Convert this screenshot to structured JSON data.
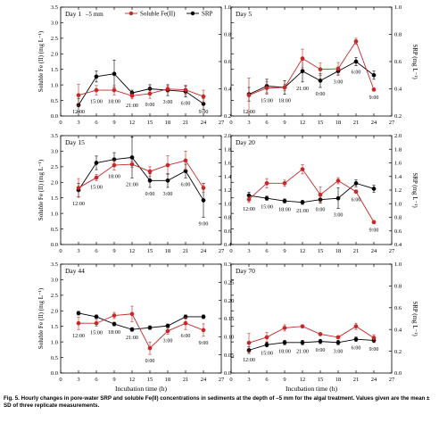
{
  "caption": "Fig. 5. Hourly changes in pore-water SRP and soluble Fe(II) concentrations in sediments at the depth of –5 mm for the algal treatment. Values given are the mean ± SD of three replicate measurements.",
  "legend": {
    "fe": "Soluble Fe(II)",
    "srp": "SRP"
  },
  "depth_label": "–5 mm",
  "axes": {
    "xlabel": "Incubation time (h)",
    "ylabel_left": "Soluble Fe (II) (mg L⁻¹)",
    "ylabel_right": "SRP (mg L⁻¹)",
    "x_ticks": [
      "0",
      "3",
      "6",
      "9",
      "12",
      "15",
      "18",
      "21",
      "24",
      "27"
    ]
  },
  "colors": {
    "fe": "#c62828",
    "srp": "#000000"
  },
  "chart_data": [
    {
      "type": "line",
      "title": "Day 1",
      "x": [
        3,
        6,
        9,
        12,
        15,
        18,
        21,
        24
      ],
      "time_labels": [
        "12:00",
        "15:00",
        "18:00",
        "21:00",
        "0:00",
        "3:00",
        "6:00",
        "9:00"
      ],
      "ylim_left": [
        0,
        3.5
      ],
      "yticks_left": [
        "0.0",
        "0.5",
        "1.0",
        "1.5",
        "2.0",
        "2.5",
        "3.0",
        "3.5"
      ],
      "ylim_right": [
        0.2,
        1.0
      ],
      "yticks_right": [
        "0.2",
        "0.4",
        "0.6",
        "0.8",
        "1.0"
      ],
      "series": [
        {
          "name": "Soluble Fe(II)",
          "axis": "left",
          "values": [
            0.67,
            0.83,
            0.83,
            0.65,
            0.72,
            0.87,
            0.84,
            0.63
          ],
          "errors": [
            0.35,
            0.15,
            0.15,
            0.1,
            0.15,
            0.1,
            0.15,
            0.2
          ]
        },
        {
          "name": "SRP",
          "axis": "right",
          "values": [
            0.28,
            0.49,
            0.51,
            0.37,
            0.4,
            0.39,
            0.38,
            0.29
          ],
          "errors": [
            0.05,
            0.04,
            0.1,
            0.02,
            0.03,
            0.04,
            0.04,
            0.04
          ]
        }
      ]
    },
    {
      "type": "line",
      "title": "Day 5",
      "x": [
        3,
        6,
        9,
        12,
        15,
        18,
        21,
        24
      ],
      "time_labels": [
        "12:00",
        "15:00",
        "18:00",
        "21:00",
        "0:00",
        "3:00",
        "6:00",
        "9:00"
      ],
      "ylim_left": [
        0,
        3.5
      ],
      "yticks_left": [],
      "ylim_right": [
        0.2,
        1.0
      ],
      "yticks_right": [
        "0.2",
        "0.4",
        "0.6",
        "0.8",
        "1.0"
      ],
      "series": [
        {
          "name": "Soluble Fe(II)",
          "axis": "left",
          "values": [
            0.67,
            0.9,
            0.92,
            1.85,
            1.5,
            1.52,
            2.4,
            0.85
          ],
          "errors": [
            0.55,
            0.2,
            0.1,
            0.3,
            0.2,
            0.2,
            0.1,
            0.05
          ]
        },
        {
          "name": "SRP",
          "axis": "right",
          "values": [
            0.36,
            0.42,
            0.41,
            0.53,
            0.46,
            0.53,
            0.6,
            0.5
          ],
          "errors": [
            0.05,
            0.05,
            0.05,
            0.08,
            0.05,
            0.03,
            0.03,
            0.03
          ]
        }
      ]
    },
    {
      "type": "line",
      "title": "Day 15",
      "x": [
        3,
        6,
        9,
        12,
        15,
        18,
        21,
        24
      ],
      "time_labels": [
        "12:00",
        "15:00",
        "18:00",
        "21:00",
        "0:00",
        "3:00",
        "6:00",
        "9:00"
      ],
      "ylim_left": [
        0,
        3.5
      ],
      "yticks_left": [
        "0.0",
        "0.5",
        "1.0",
        "1.5",
        "2.0",
        "2.5",
        "3.0",
        "3.5"
      ],
      "ylim_right": [
        0.4,
        2.0
      ],
      "yticks_right": [
        "0.4",
        "0.6",
        "0.8",
        "1.0",
        "1.2",
        "1.4",
        "1.6",
        "1.8",
        "2.0"
      ],
      "series": [
        {
          "name": "Soluble Fe(II)",
          "axis": "left",
          "values": [
            1.82,
            2.15,
            2.55,
            2.58,
            2.35,
            2.55,
            2.7,
            1.82
          ],
          "errors": [
            0.3,
            0.1,
            0.15,
            0.1,
            0.15,
            0.3,
            0.3,
            0.15
          ]
        },
        {
          "name": "SRP",
          "axis": "right",
          "values": [
            1.2,
            1.6,
            1.65,
            1.68,
            1.34,
            1.34,
            1.48,
            1.05
          ],
          "errors": [
            0.1,
            0.1,
            0.1,
            0.3,
            0.1,
            0.1,
            0.1,
            0.25
          ]
        }
      ]
    },
    {
      "type": "line",
      "title": "Day 20",
      "x": [
        3,
        6,
        9,
        12,
        15,
        18,
        21,
        24
      ],
      "time_labels": [
        "12:00",
        "15:00",
        "18:00",
        "21:00",
        "0:00",
        "3:00",
        "6:00",
        "9:00"
      ],
      "ylim_left": [
        0,
        3.5
      ],
      "yticks_left": [],
      "ylim_right": [
        0.4,
        2.0
      ],
      "yticks_right": [
        "0.4",
        "0.6",
        "0.8",
        "1.0",
        "1.2",
        "1.4",
        "1.6",
        "1.8",
        "2.0"
      ],
      "series": [
        {
          "name": "Soluble Fe(II)",
          "axis": "left",
          "values": [
            1.45,
            1.97,
            1.97,
            2.42,
            1.6,
            2.05,
            1.7,
            0.72
          ],
          "errors": [
            0.1,
            0.15,
            0.1,
            0.15,
            0.25,
            0.1,
            0.05,
            0.05
          ]
        },
        {
          "name": "SRP",
          "axis": "right",
          "values": [
            1.12,
            1.08,
            1.04,
            1.02,
            1.06,
            1.08,
            1.3,
            1.22
          ],
          "errors": [
            0.05,
            0.03,
            0.03,
            0.03,
            0.05,
            0.15,
            0.05,
            0.05
          ]
        }
      ]
    },
    {
      "type": "line",
      "title": "Day 44",
      "x": [
        3,
        6,
        9,
        12,
        15,
        18,
        21,
        24
      ],
      "time_labels": [
        "12:00",
        "15:00",
        "18:00",
        "21:00",
        "0:00",
        "3:00",
        "6:00",
        "9:00"
      ],
      "ylim_left": [
        0,
        3.5
      ],
      "yticks_left": [
        "0.0",
        "0.5",
        "1.0",
        "1.5",
        "2.0",
        "2.5",
        "3.0",
        "3.5"
      ],
      "ylim_right": [
        0,
        0.3
      ],
      "yticks_right": [
        "0.0",
        "0.05",
        "0.10",
        "0.15",
        "0.20",
        "0.25",
        "0.3"
      ],
      "series": [
        {
          "name": "Soluble Fe(II)",
          "axis": "left",
          "values": [
            1.6,
            1.6,
            1.85,
            1.9,
            0.8,
            1.35,
            1.6,
            1.38
          ],
          "errors": [
            0.2,
            0.1,
            0.1,
            0.25,
            0.2,
            0.1,
            0.2,
            0.2
          ]
        },
        {
          "name": "SRP",
          "axis": "right",
          "values": [
            0.165,
            0.155,
            0.135,
            0.12,
            0.125,
            0.13,
            0.155,
            0.155
          ],
          "errors": [
            0.005,
            0.005,
            0.005,
            0.005,
            0.005,
            0.005,
            0.005,
            0.005
          ]
        }
      ]
    },
    {
      "type": "line",
      "title": "Day 70",
      "x": [
        3,
        6,
        9,
        12,
        15,
        18,
        21,
        24
      ],
      "time_labels": [
        "12:00",
        "15:00",
        "18:00",
        "21:00",
        "0:00",
        "3:00",
        "6:00",
        "9:00"
      ],
      "ylim_left": [
        0,
        3.5
      ],
      "yticks_left": [],
      "ylim_right": [
        0,
        1.0
      ],
      "yticks_right": [
        "0.0",
        "0.2",
        "0.4",
        "0.6",
        "0.8",
        "1.0"
      ],
      "series": [
        {
          "name": "Soluble Fe(II)",
          "axis": "left",
          "values": [
            0.97,
            1.15,
            1.45,
            1.5,
            1.25,
            1.15,
            1.5,
            1.13
          ],
          "errors": [
            0.3,
            0.15,
            0.1,
            0.05,
            0.05,
            0.05,
            0.1,
            0.1
          ]
        },
        {
          "name": "SRP",
          "axis": "right",
          "values": [
            0.21,
            0.26,
            0.28,
            0.28,
            0.29,
            0.28,
            0.31,
            0.3
          ],
          "errors": [
            0.03,
            0.02,
            0.02,
            0.02,
            0.02,
            0.02,
            0.02,
            0.02
          ]
        }
      ]
    }
  ]
}
